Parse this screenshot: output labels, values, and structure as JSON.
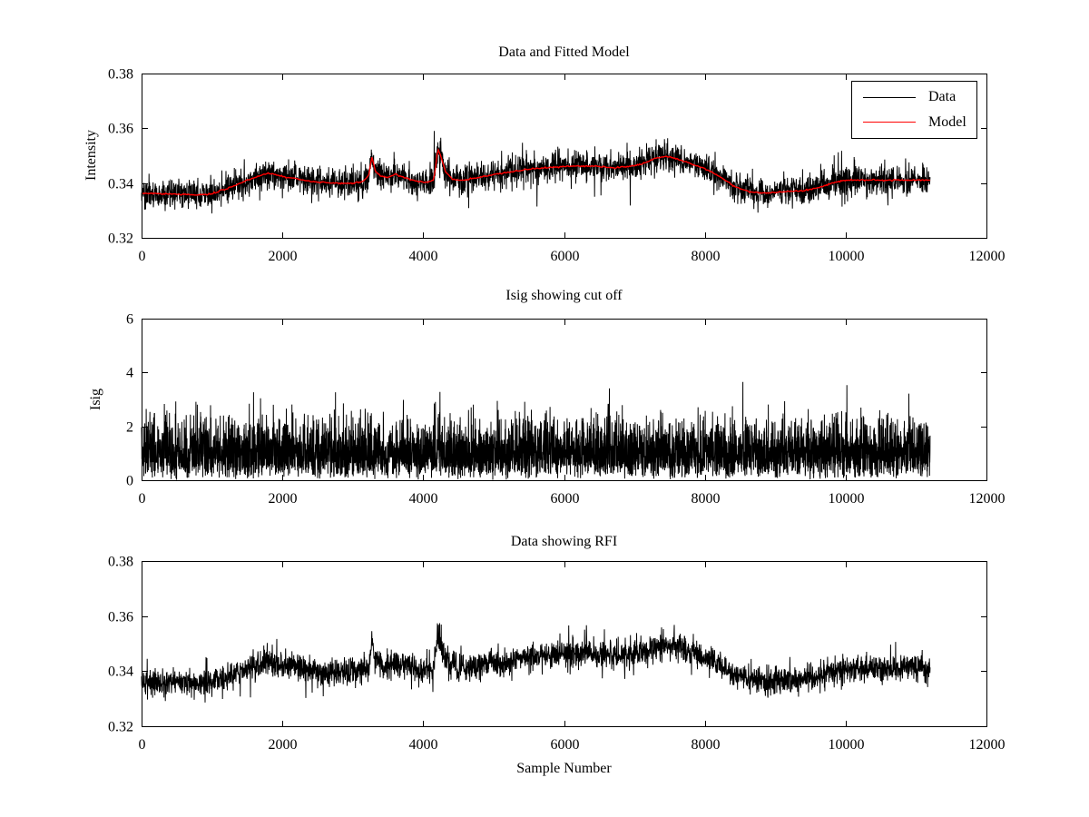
{
  "figure": {
    "background": "#ffffff",
    "axis_color": "#000000"
  },
  "chart_data": [
    {
      "type": "line",
      "title": "Data and Fitted Model",
      "ylabel": "Intensity",
      "xlabel": "",
      "xlim": [
        0,
        12000
      ],
      "ylim": [
        0.32,
        0.38
      ],
      "xticks": [
        0,
        2000,
        4000,
        6000,
        8000,
        10000,
        12000
      ],
      "xtick_labels": [
        "0",
        "2000",
        "4000",
        "6000",
        "8000",
        "10000",
        "12000"
      ],
      "yticks": [
        0.32,
        0.34,
        0.36,
        0.38
      ],
      "ytick_labels": [
        "0.32",
        "0.34",
        "0.36",
        "0.38"
      ],
      "x_end": 11200,
      "grid": false,
      "legend": {
        "position": "northeast",
        "entries": [
          "Data",
          "Model"
        ]
      },
      "model_trend": [
        [
          0,
          0.3363
        ],
        [
          400,
          0.336
        ],
        [
          800,
          0.3357
        ],
        [
          1000,
          0.3361
        ],
        [
          1200,
          0.3378
        ],
        [
          1500,
          0.341
        ],
        [
          1800,
          0.3437
        ],
        [
          1950,
          0.3427
        ],
        [
          2150,
          0.3418
        ],
        [
          2400,
          0.3406
        ],
        [
          2700,
          0.3399
        ],
        [
          3000,
          0.3399
        ],
        [
          3150,
          0.3406
        ],
        [
          3230,
          0.343
        ],
        [
          3270,
          0.3497
        ],
        [
          3320,
          0.3445
        ],
        [
          3400,
          0.3424
        ],
        [
          3500,
          0.3421
        ],
        [
          3600,
          0.3433
        ],
        [
          3750,
          0.3419
        ],
        [
          3900,
          0.3406
        ],
        [
          4050,
          0.3402
        ],
        [
          4150,
          0.3413
        ],
        [
          4210,
          0.3525
        ],
        [
          4260,
          0.349
        ],
        [
          4320,
          0.344
        ],
        [
          4420,
          0.3414
        ],
        [
          4600,
          0.341
        ],
        [
          4800,
          0.3421
        ],
        [
          5000,
          0.3431
        ],
        [
          5300,
          0.3443
        ],
        [
          5600,
          0.3453
        ],
        [
          6000,
          0.3461
        ],
        [
          6400,
          0.3462
        ],
        [
          6700,
          0.3456
        ],
        [
          6900,
          0.3459
        ],
        [
          7100,
          0.3469
        ],
        [
          7300,
          0.3491
        ],
        [
          7450,
          0.3498
        ],
        [
          7600,
          0.3489
        ],
        [
          7800,
          0.3471
        ],
        [
          8000,
          0.3452
        ],
        [
          8200,
          0.3426
        ],
        [
          8400,
          0.3391
        ],
        [
          8600,
          0.3371
        ],
        [
          8800,
          0.3363
        ],
        [
          9000,
          0.3366
        ],
        [
          9200,
          0.3369
        ],
        [
          9400,
          0.3373
        ],
        [
          9600,
          0.3381
        ],
        [
          9800,
          0.3399
        ],
        [
          9950,
          0.3409
        ],
        [
          10100,
          0.3411
        ],
        [
          11200,
          0.3411
        ]
      ],
      "series": [
        {
          "name": "Data",
          "color": "#000000",
          "style": "noisy",
          "noise_sigma": 0.0026
        },
        {
          "name": "Model",
          "color": "#ff0000",
          "style": "model"
        }
      ]
    },
    {
      "type": "line",
      "title": "Isig showing cut off",
      "ylabel": "Isig",
      "xlabel": "",
      "xlim": [
        0,
        12000
      ],
      "ylim": [
        0,
        6
      ],
      "xticks": [
        0,
        2000,
        4000,
        6000,
        8000,
        10000,
        12000
      ],
      "xtick_labels": [
        "0",
        "2000",
        "4000",
        "6000",
        "8000",
        "10000",
        "12000"
      ],
      "yticks": [
        0,
        2,
        4,
        6
      ],
      "ytick_labels": [
        "0",
        "2",
        "4",
        "6"
      ],
      "x_end": 11200,
      "grid": false,
      "series": [
        {
          "name": "Isig",
          "color": "#000000",
          "style": "rayleigh",
          "sigma": 0.85
        }
      ]
    },
    {
      "type": "line",
      "title": "Data showing RFI",
      "ylabel": "",
      "xlabel": "Sample Number",
      "xlim": [
        0,
        12000
      ],
      "ylim": [
        0.32,
        0.38
      ],
      "xticks": [
        0,
        2000,
        4000,
        6000,
        8000,
        10000,
        12000
      ],
      "xtick_labels": [
        "0",
        "2000",
        "4000",
        "6000",
        "8000",
        "10000",
        "12000"
      ],
      "yticks": [
        0.32,
        0.34,
        0.36,
        0.38
      ],
      "ytick_labels": [
        "0.32",
        "0.34",
        "0.36",
        "0.38"
      ],
      "x_end": 11200,
      "grid": false,
      "model_trend": [
        [
          0,
          0.3363
        ],
        [
          400,
          0.336
        ],
        [
          800,
          0.3357
        ],
        [
          1000,
          0.3361
        ],
        [
          1200,
          0.3378
        ],
        [
          1500,
          0.341
        ],
        [
          1800,
          0.3437
        ],
        [
          1950,
          0.3427
        ],
        [
          2150,
          0.3418
        ],
        [
          2400,
          0.3406
        ],
        [
          2700,
          0.3399
        ],
        [
          3000,
          0.3399
        ],
        [
          3150,
          0.3406
        ],
        [
          3230,
          0.343
        ],
        [
          3270,
          0.3497
        ],
        [
          3320,
          0.3445
        ],
        [
          3400,
          0.3424
        ],
        [
          3500,
          0.3421
        ],
        [
          3600,
          0.3433
        ],
        [
          3750,
          0.3419
        ],
        [
          3900,
          0.3406
        ],
        [
          4050,
          0.3402
        ],
        [
          4150,
          0.3413
        ],
        [
          4210,
          0.3525
        ],
        [
          4260,
          0.349
        ],
        [
          4320,
          0.344
        ],
        [
          4420,
          0.3414
        ],
        [
          4600,
          0.341
        ],
        [
          4800,
          0.3421
        ],
        [
          5000,
          0.3431
        ],
        [
          5300,
          0.3443
        ],
        [
          5600,
          0.3453
        ],
        [
          6000,
          0.3461
        ],
        [
          6400,
          0.3462
        ],
        [
          6700,
          0.3456
        ],
        [
          6900,
          0.3459
        ],
        [
          7100,
          0.3469
        ],
        [
          7300,
          0.3491
        ],
        [
          7450,
          0.3498
        ],
        [
          7600,
          0.3489
        ],
        [
          7800,
          0.3471
        ],
        [
          8000,
          0.3452
        ],
        [
          8200,
          0.3426
        ],
        [
          8400,
          0.3391
        ],
        [
          8600,
          0.3371
        ],
        [
          8800,
          0.3363
        ],
        [
          9000,
          0.3366
        ],
        [
          9200,
          0.3369
        ],
        [
          9400,
          0.3373
        ],
        [
          9600,
          0.3381
        ],
        [
          9800,
          0.3399
        ],
        [
          9950,
          0.3409
        ],
        [
          10100,
          0.3411
        ],
        [
          11200,
          0.3411
        ]
      ],
      "series": [
        {
          "name": "Data",
          "color": "#000000",
          "style": "noisy",
          "noise_sigma": 0.0024
        }
      ]
    }
  ]
}
